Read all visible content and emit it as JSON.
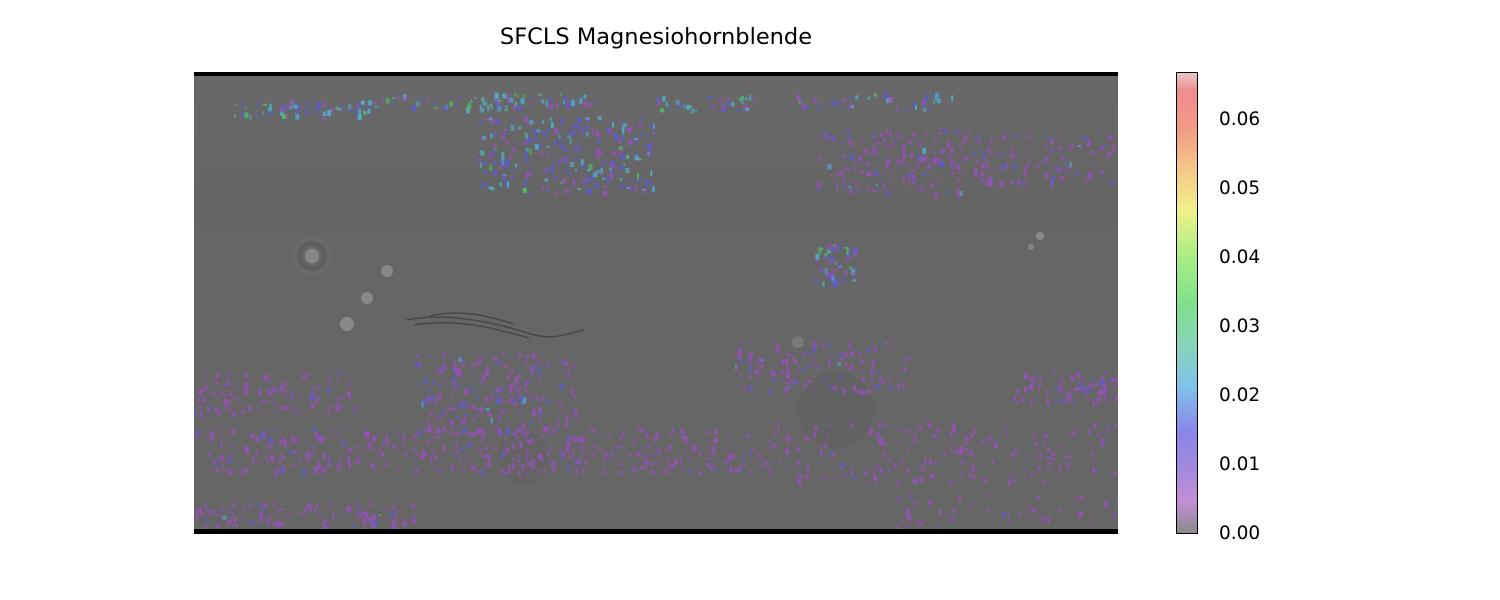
{
  "title": "SFCLS Magnesiohornblende",
  "colorbar": {
    "ticks": [
      "0.00",
      "0.01",
      "0.02",
      "0.03",
      "0.04",
      "0.05",
      "0.06"
    ],
    "tick_values": [
      0.0,
      0.01,
      0.02,
      0.03,
      0.04,
      0.05,
      0.06
    ],
    "max": 0.067,
    "colormap": "nipy_spectral (alpha ~0.4)"
  },
  "map": {
    "basemap": "Mars shaded relief (equirectangular)",
    "background_color": "#656565",
    "border_color": "#000000"
  },
  "colors": {
    "purple": "#9b4fc0",
    "blue": "#5b5bd8",
    "cyan": "#4fb0d0",
    "green": "#50c060",
    "light_green": "#6ad88a"
  }
}
